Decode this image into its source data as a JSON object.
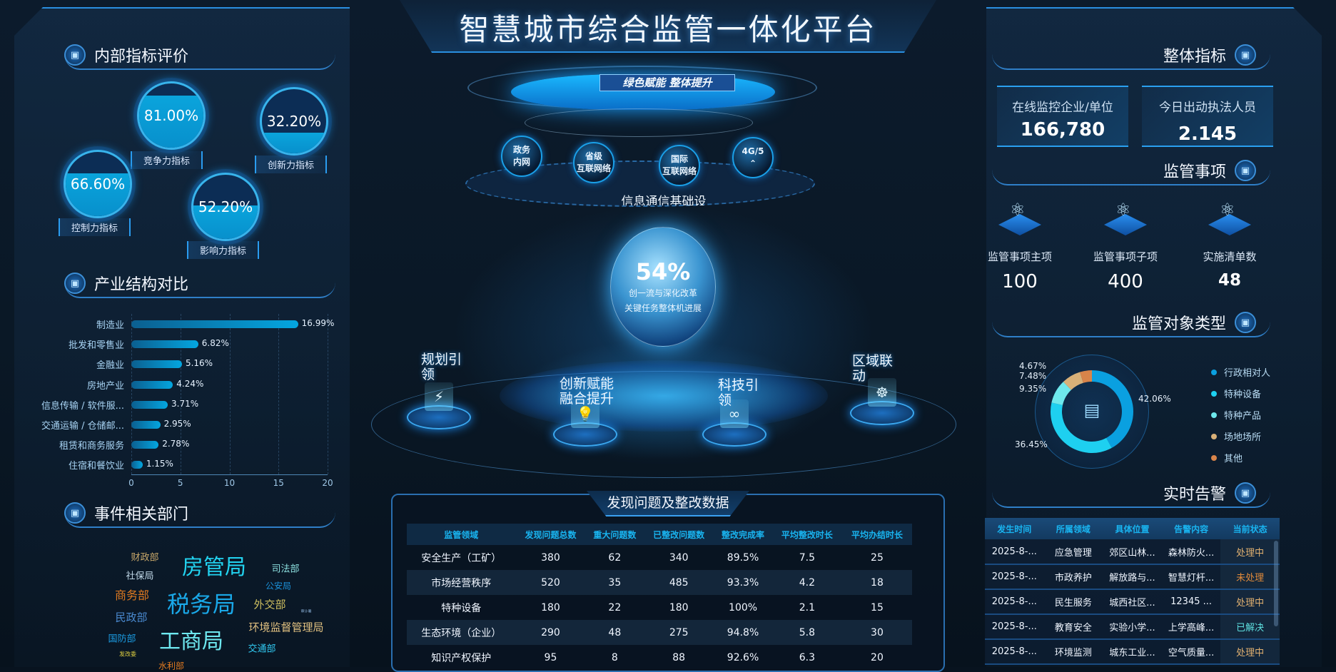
{
  "title": "智慧城市综合监管一体化平台",
  "left": {
    "internal": {
      "title": "内部指标评价",
      "gauges": [
        {
          "label": "竞争力指标",
          "value": "81.00%",
          "fraction": 0.81
        },
        {
          "label": "创新力指标",
          "value": "32.20%",
          "fraction": 0.322
        },
        {
          "label": "控制力指标",
          "value": "66.60%",
          "fraction": 0.666
        },
        {
          "label": "影响力指标",
          "value": "52.20%",
          "fraction": 0.522
        }
      ]
    },
    "industry": {
      "title": "产业结构对比"
    },
    "departments": {
      "title": "事件相关部门",
      "words": [
        {
          "text": "财政部",
          "color": "#c8a86a"
        },
        {
          "text": "房管局",
          "color": "#22d3f0"
        },
        {
          "text": "司法部",
          "color": "#8ce0e0"
        },
        {
          "text": "社保局",
          "color": "#c0d8e8"
        },
        {
          "text": "公安局",
          "color": "#1a90d8"
        },
        {
          "text": "商务部",
          "color": "#e07a20"
        },
        {
          "text": "税务局",
          "color": "#1aa8e8"
        },
        {
          "text": "外交部",
          "color": "#d0c060"
        },
        {
          "text": "审计署",
          "color": "#8ab0d8"
        },
        {
          "text": "民政部",
          "color": "#4a8ad0"
        },
        {
          "text": "环境监督管理局",
          "color": "#e0c080"
        },
        {
          "text": "国防部",
          "color": "#1a9ae0"
        },
        {
          "text": "工商局",
          "color": "#6ee8f0"
        },
        {
          "text": "交通部",
          "color": "#30c8f0"
        },
        {
          "text": "发改委",
          "color": "#e0d040"
        },
        {
          "text": "水利部",
          "color": "#e07a20"
        }
      ]
    }
  },
  "chart_data": [
    {
      "type": "bar",
      "orientation": "horizontal",
      "categories": [
        "制造业",
        "批发和零售业",
        "金融业",
        "房地产业",
        "信息传输 / 软件服...",
        "交通运输 / 仓储邮...",
        "租赁和商务服务",
        "住宿和餐饮业"
      ],
      "values": [
        16.99,
        6.82,
        5.16,
        4.24,
        3.71,
        2.95,
        2.78,
        1.15
      ],
      "value_labels": [
        "16.99%",
        "6.82%",
        "5.16%",
        "4.24%",
        "3.71%",
        "2.95%",
        "2.78%",
        "1.15%"
      ],
      "xlim": [
        0,
        20
      ],
      "xticks": [
        "0",
        "5",
        "10",
        "15",
        "20"
      ],
      "grid": true
    },
    {
      "type": "pie",
      "donut": true,
      "categories": [
        "行政相对人",
        "特种设备",
        "特种产品",
        "场地场所",
        "其他"
      ],
      "values": [
        42.06,
        36.45,
        9.35,
        7.48,
        4.67
      ],
      "value_labels": [
        "42.06%",
        "36.45%",
        "9.35%",
        "7.48%",
        "4.67%"
      ],
      "colors": [
        "#0aa0e0",
        "#1ed0f0",
        "#6ee8ec",
        "#d8b078",
        "#d8844a"
      ],
      "legend": "right"
    }
  ],
  "center": {
    "banner": "绿色赋能  整体提升",
    "networks": [
      {
        "l1": "政务",
        "l2": "内网"
      },
      {
        "l1": "省级",
        "l2": "互联网络"
      },
      {
        "l1": "国际",
        "l2": "互联网络"
      },
      {
        "l1": "4G/5",
        "l2": "⌃"
      }
    ],
    "infra_label": "信息通信基础设",
    "globe": {
      "value": "54%",
      "line1": "创一流与深化改革",
      "line2": "关键任务整体机进展"
    },
    "platforms": [
      {
        "l1": "规划引",
        "l2": "领",
        "icon": "charging-icon"
      },
      {
        "l1": "创新赋能",
        "l2": "融合提升",
        "icon": "lightbulb-icon"
      },
      {
        "l1": "科技引",
        "l2": "领",
        "icon": "link-icon"
      },
      {
        "l1": "区域联",
        "l2": "动",
        "icon": "team-icon"
      }
    ],
    "table": {
      "title": "发现问题及整改数据",
      "headers": [
        "监管领域",
        "发现问题总数",
        "重大问题数",
        "已整改问题数",
        "整改完成率",
        "平均整改时长",
        "平均办结时长"
      ],
      "rows": [
        [
          "安全生产（工矿）",
          "380",
          "62",
          "340",
          "89.5%",
          "7.5",
          "25"
        ],
        [
          "市场经营秩序",
          "520",
          "35",
          "485",
          "93.3%",
          "4.2",
          "18"
        ],
        [
          "特种设备",
          "180",
          "22",
          "180",
          "100%",
          "2.1",
          "15"
        ],
        [
          "生态环境（企业）",
          "290",
          "48",
          "275",
          "94.8%",
          "5.8",
          "30"
        ],
        [
          "知识产权保护",
          "95",
          "8",
          "88",
          "92.6%",
          "6.3",
          "20"
        ]
      ]
    }
  },
  "right": {
    "overall": {
      "title": "整体指标",
      "cards": [
        {
          "label": "在线监控企业/单位",
          "value": "166,780"
        },
        {
          "label": "今日出动执法人员",
          "value": "2.145"
        }
      ]
    },
    "items": {
      "title": "监管事项",
      "stats": [
        {
          "label": "监管事项主项",
          "value": "100"
        },
        {
          "label": "监管事项子项",
          "value": "400"
        },
        {
          "label": "实施清单数",
          "value": "48"
        }
      ]
    },
    "objects": {
      "title": "监管对象类型"
    },
    "alerts": {
      "title": "实时告警",
      "headers": [
        "发生时间",
        "所属领域",
        "具体位置",
        "告警内容",
        "当前状态"
      ],
      "rows": [
        [
          "2025-8-...",
          "应急管理",
          "郊区山林...",
          "森林防火...",
          "处理中"
        ],
        [
          "2025-8-...",
          "市政养护",
          "解放路与...",
          "智慧灯杆...",
          "未处理"
        ],
        [
          "2025-8-...",
          "民生服务",
          "城西社区...",
          "12345 ...",
          "处理中"
        ],
        [
          "2025-8-...",
          "教育安全",
          "实验小学...",
          "上学高峰...",
          "已解决"
        ],
        [
          "2025-8-...",
          "环境监测",
          "城东工业...",
          "空气质量...",
          "处理中"
        ]
      ],
      "status_colors": {
        "处理中": "#e0b070",
        "未处理": "#e08a3a",
        "已解决": "#5ee0e0"
      }
    }
  }
}
